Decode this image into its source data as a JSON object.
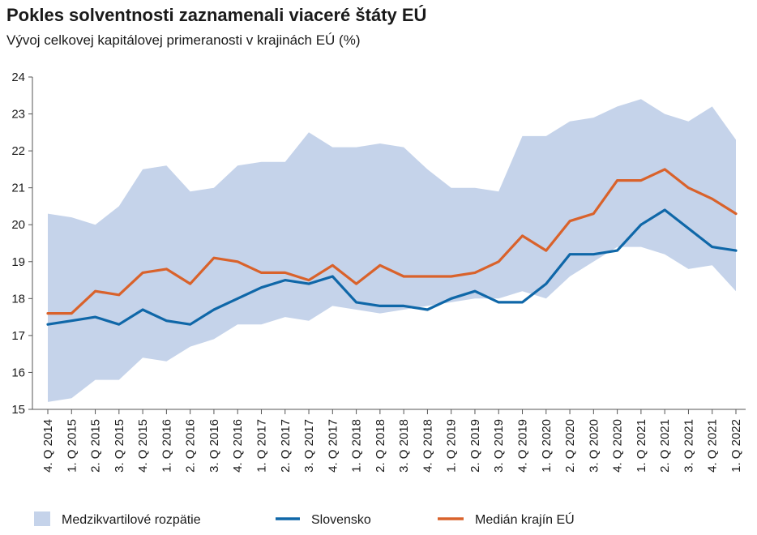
{
  "chart_data": {
    "type": "line",
    "title": "Pokles solventnosti zaznamenali viaceré štáty EÚ",
    "subtitle": "Vývoj celkovej kapitálovej primeranosti v krajinách EÚ (%)",
    "xlabel": "",
    "ylabel": "",
    "ylim": [
      15,
      24
    ],
    "yticks": [
      "15",
      "16",
      "17",
      "18",
      "19",
      "20",
      "21",
      "22",
      "23",
      "24"
    ],
    "categories": [
      "4. Q 2014",
      "1. Q 2015",
      "2. Q 2015",
      "3. Q 2015",
      "4. Q 2015",
      "1. Q 2016",
      "2. Q 2016",
      "3. Q 2016",
      "4. Q 2016",
      "1. Q 2017",
      "2. Q 2017",
      "3. Q 2017",
      "4. Q 2017",
      "1. Q 2018",
      "2. Q 2018",
      "3. Q 2018",
      "4. Q 2018",
      "1. Q 2019",
      "2. Q 2019",
      "3. Q 2019",
      "4. Q 2019",
      "1. Q 2020",
      "2. Q 2020",
      "3. Q 2020",
      "4. Q 2020",
      "1. Q 2021",
      "2. Q 2021",
      "3. Q 2021",
      "4. Q 2021",
      "1. Q 2022"
    ],
    "band": {
      "name": "Medzikvartilové rozpätie",
      "color": "#c5d3ea",
      "upper": [
        20.3,
        20.2,
        20.0,
        20.5,
        21.5,
        21.6,
        20.9,
        21.0,
        21.6,
        21.7,
        21.7,
        22.5,
        22.1,
        22.1,
        22.2,
        22.1,
        21.5,
        21.0,
        21.0,
        20.9,
        22.4,
        22.4,
        22.8,
        22.9,
        23.2,
        23.4,
        23.0,
        22.8,
        23.2,
        22.3
      ],
      "lower": [
        15.2,
        15.3,
        15.8,
        15.8,
        16.4,
        16.3,
        16.7,
        16.9,
        17.3,
        17.3,
        17.5,
        17.4,
        17.8,
        17.7,
        17.6,
        17.7,
        17.8,
        17.9,
        18.0,
        18.0,
        18.2,
        18.0,
        18.6,
        19.0,
        19.4,
        19.4,
        19.2,
        18.8,
        18.9,
        18.2
      ]
    },
    "series": [
      {
        "name": "Slovensko",
        "color": "#0f67a8",
        "values": [
          17.3,
          17.4,
          17.5,
          17.3,
          17.7,
          17.4,
          17.3,
          17.7,
          18.0,
          18.3,
          18.5,
          18.4,
          18.6,
          17.9,
          17.8,
          17.8,
          17.7,
          18.0,
          18.2,
          17.9,
          17.9,
          18.4,
          19.2,
          19.2,
          19.3,
          20.0,
          20.4,
          19.9,
          19.4,
          19.3
        ]
      },
      {
        "name": "Medián krajín EÚ",
        "color": "#d9622b",
        "values": [
          17.6,
          17.6,
          18.2,
          18.1,
          18.7,
          18.8,
          18.4,
          19.1,
          19.0,
          18.7,
          18.7,
          18.5,
          18.9,
          18.4,
          18.9,
          18.6,
          18.6,
          18.6,
          18.7,
          19.0,
          19.7,
          19.3,
          20.1,
          20.3,
          21.2,
          21.2,
          21.5,
          21.0,
          20.7,
          20.3
        ]
      }
    ],
    "legend": "bottom"
  }
}
